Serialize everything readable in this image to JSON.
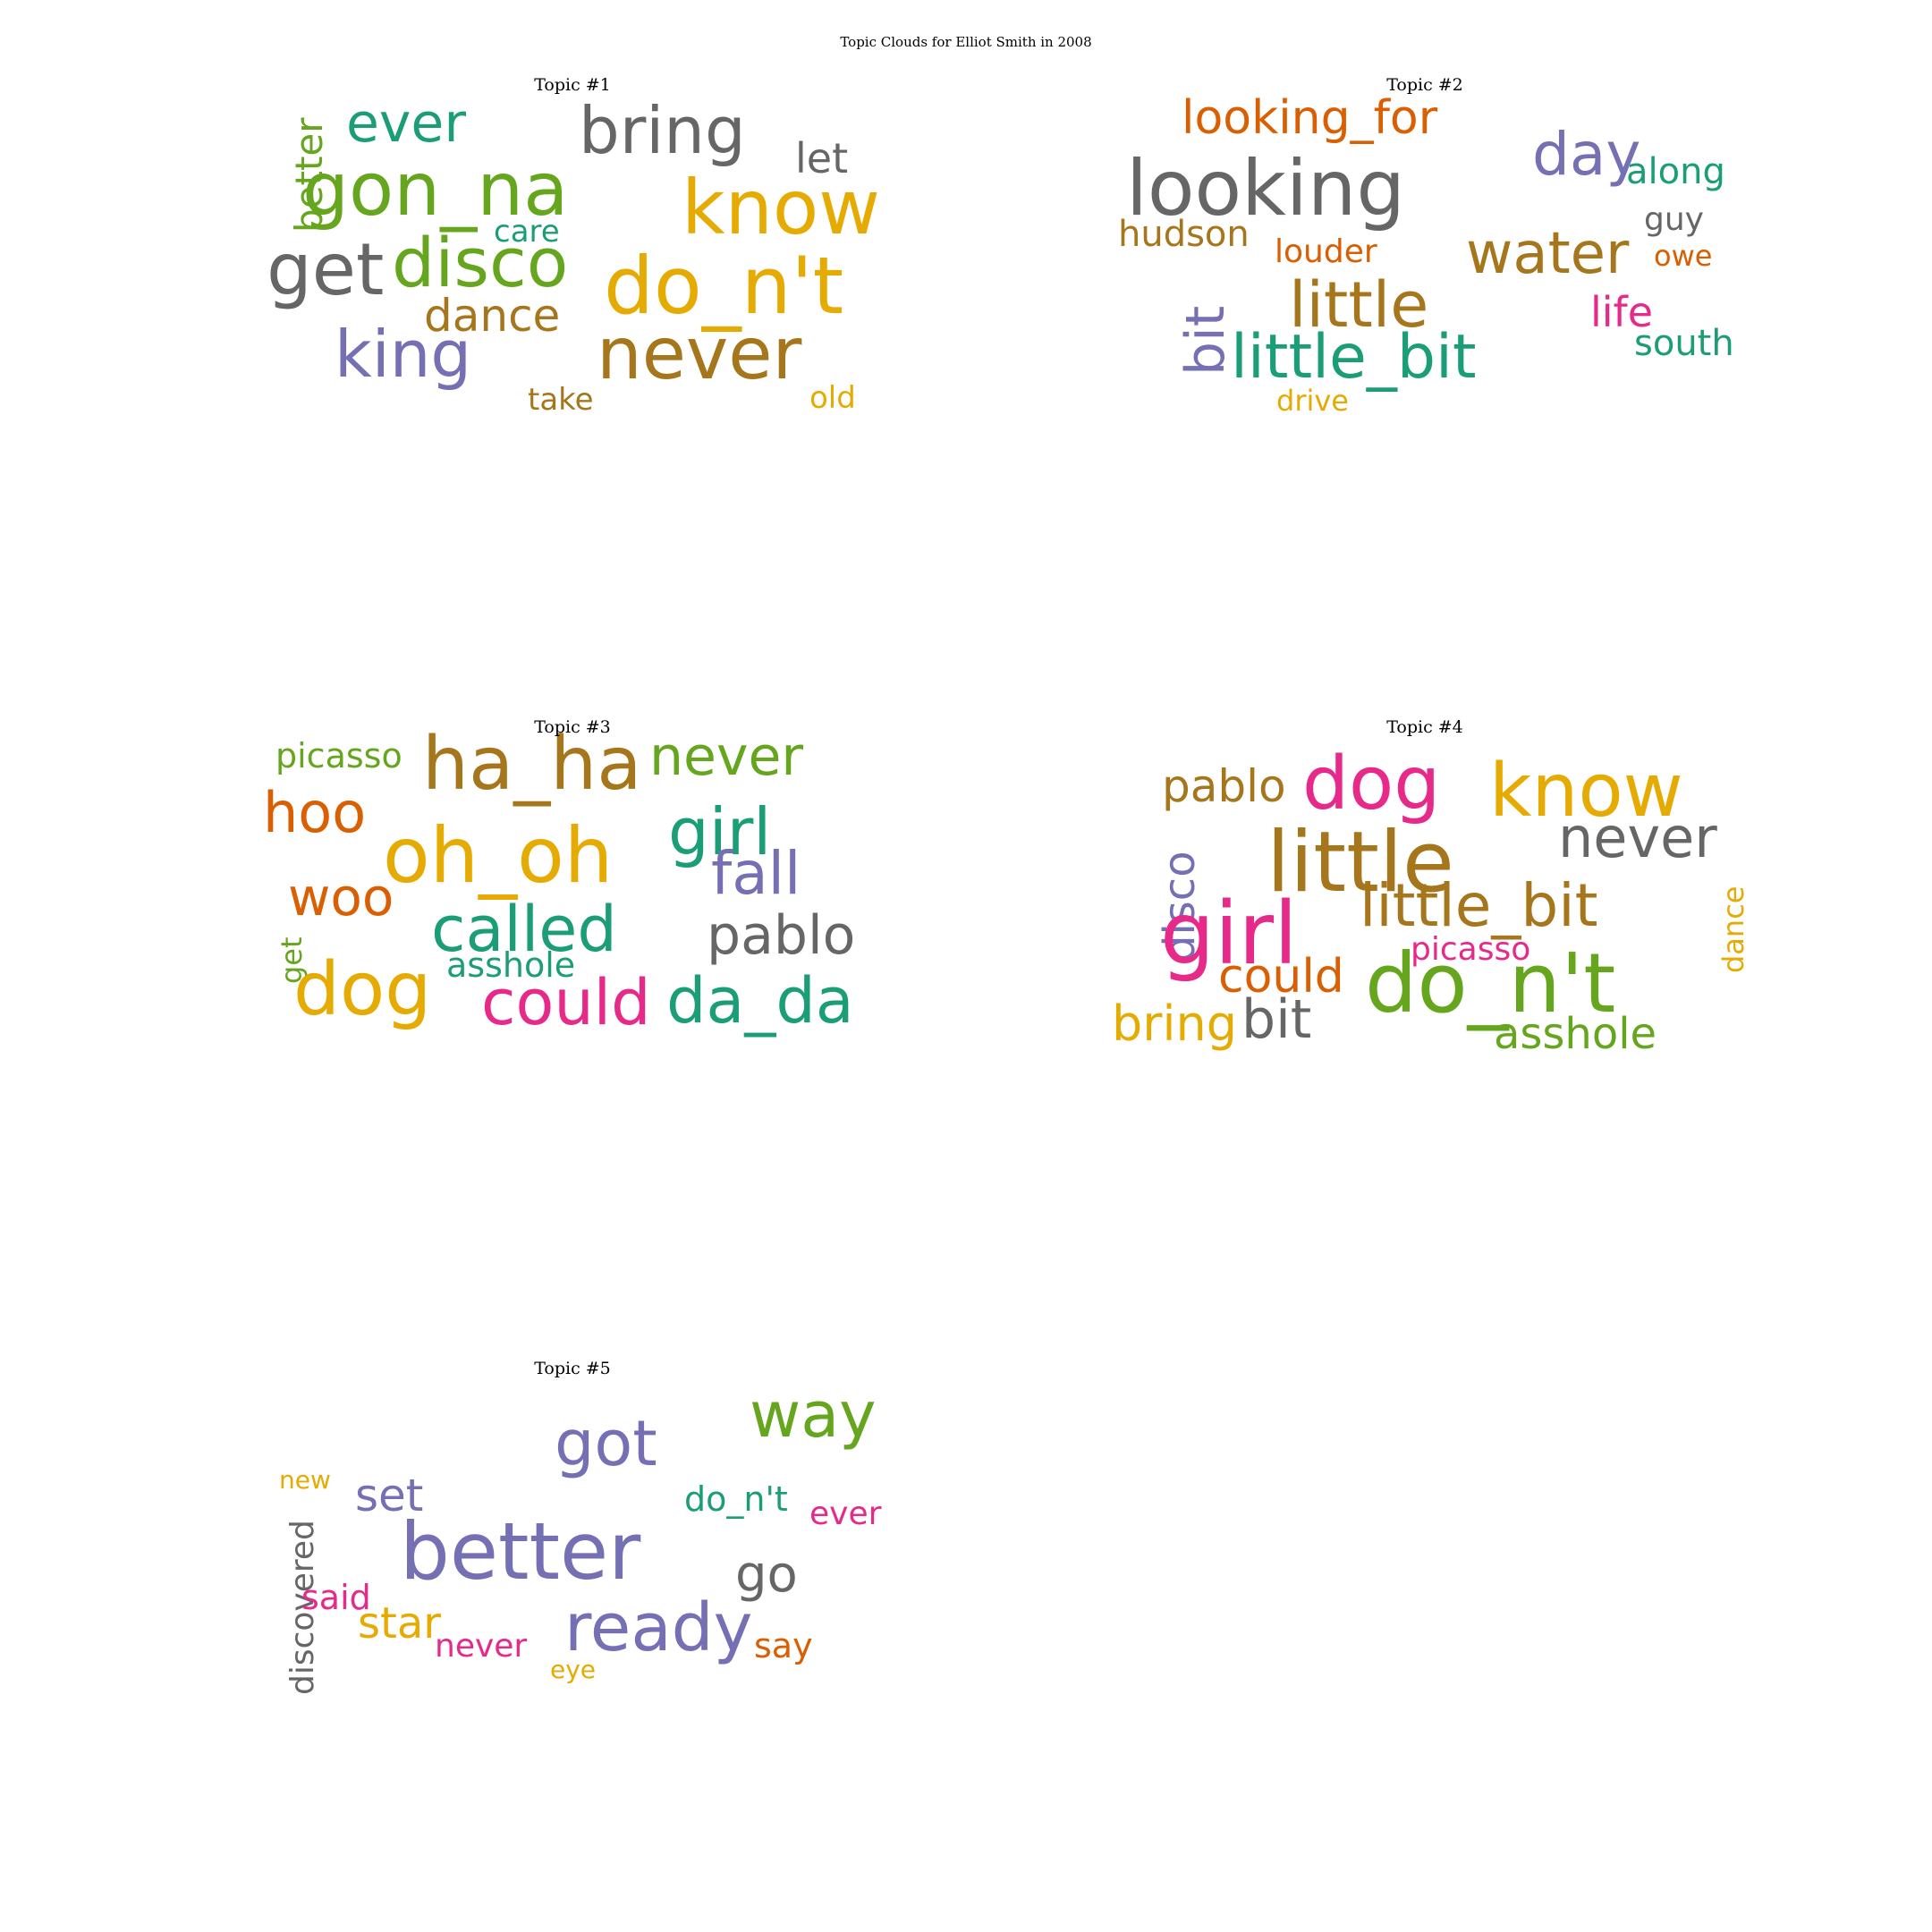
{
  "figure": {
    "title": "Topic Clouds for Elliot Smith in 2008"
  },
  "colors": {
    "teal": "#1b9e77",
    "orange": "#d95f02",
    "purple": "#7570b3",
    "pink": "#e7298a",
    "green": "#66a61e",
    "yellow": "#e6ab02",
    "brown": "#a6761d",
    "gray": "#666666"
  },
  "topics": [
    {
      "title": "Topic #1",
      "words": [
        {
          "text": "ever",
          "color": "teal",
          "vertical": false
        },
        {
          "text": "bring",
          "color": "gray",
          "vertical": false
        },
        {
          "text": "better",
          "color": "green",
          "vertical": true
        },
        {
          "text": "gon_na",
          "color": "green",
          "vertical": false
        },
        {
          "text": "let",
          "color": "gray",
          "vertical": false
        },
        {
          "text": "know",
          "color": "yellow",
          "vertical": false
        },
        {
          "text": "care",
          "color": "teal",
          "vertical": false
        },
        {
          "text": "get",
          "color": "gray",
          "vertical": false
        },
        {
          "text": "disco",
          "color": "green",
          "vertical": false
        },
        {
          "text": "do_n't",
          "color": "yellow",
          "vertical": false
        },
        {
          "text": "dance",
          "color": "brown",
          "vertical": false
        },
        {
          "text": "king",
          "color": "purple",
          "vertical": false
        },
        {
          "text": "never",
          "color": "brown",
          "vertical": false
        },
        {
          "text": "take",
          "color": "brown",
          "vertical": false
        },
        {
          "text": "old",
          "color": "yellow",
          "vertical": false
        }
      ]
    },
    {
      "title": "Topic #2",
      "words": [
        {
          "text": "looking_for",
          "color": "orange",
          "vertical": false
        },
        {
          "text": "day",
          "color": "purple",
          "vertical": false
        },
        {
          "text": "looking",
          "color": "gray",
          "vertical": false
        },
        {
          "text": "along",
          "color": "teal",
          "vertical": false
        },
        {
          "text": "guy",
          "color": "gray",
          "vertical": false
        },
        {
          "text": "hudson",
          "color": "brown",
          "vertical": false
        },
        {
          "text": "louder",
          "color": "orange",
          "vertical": false
        },
        {
          "text": "water",
          "color": "brown",
          "vertical": false
        },
        {
          "text": "owe",
          "color": "orange",
          "vertical": false
        },
        {
          "text": "bit",
          "color": "purple",
          "vertical": true
        },
        {
          "text": "little",
          "color": "brown",
          "vertical": false
        },
        {
          "text": "life",
          "color": "pink",
          "vertical": false
        },
        {
          "text": "south",
          "color": "teal",
          "vertical": false
        },
        {
          "text": "little_bit",
          "color": "teal",
          "vertical": false
        },
        {
          "text": "drive",
          "color": "yellow",
          "vertical": false
        }
      ]
    },
    {
      "title": "Topic #3",
      "words": [
        {
          "text": "picasso",
          "color": "green",
          "vertical": false
        },
        {
          "text": "ha_ha",
          "color": "brown",
          "vertical": false
        },
        {
          "text": "never",
          "color": "green",
          "vertical": false
        },
        {
          "text": "hoo",
          "color": "orange",
          "vertical": false
        },
        {
          "text": "girl",
          "color": "teal",
          "vertical": false
        },
        {
          "text": "oh_oh",
          "color": "yellow",
          "vertical": false
        },
        {
          "text": "fall",
          "color": "purple",
          "vertical": false
        },
        {
          "text": "woo",
          "color": "orange",
          "vertical": false
        },
        {
          "text": "called",
          "color": "teal",
          "vertical": false
        },
        {
          "text": "pablo",
          "color": "gray",
          "vertical": false
        },
        {
          "text": "get",
          "color": "green",
          "vertical": true
        },
        {
          "text": "asshole",
          "color": "teal",
          "vertical": false
        },
        {
          "text": "dog",
          "color": "yellow",
          "vertical": false
        },
        {
          "text": "could",
          "color": "pink",
          "vertical": false
        },
        {
          "text": "da_da",
          "color": "teal",
          "vertical": false
        }
      ]
    },
    {
      "title": "Topic #4",
      "words": [
        {
          "text": "pablo",
          "color": "brown",
          "vertical": false
        },
        {
          "text": "dog",
          "color": "pink",
          "vertical": false
        },
        {
          "text": "know",
          "color": "yellow",
          "vertical": false
        },
        {
          "text": "disco",
          "color": "purple",
          "vertical": true
        },
        {
          "text": "little",
          "color": "brown",
          "vertical": false
        },
        {
          "text": "never",
          "color": "gray",
          "vertical": false
        },
        {
          "text": "girl",
          "color": "pink",
          "vertical": false
        },
        {
          "text": "little_bit",
          "color": "brown",
          "vertical": false
        },
        {
          "text": "dance",
          "color": "yellow",
          "vertical": true
        },
        {
          "text": "picasso",
          "color": "pink",
          "vertical": false
        },
        {
          "text": "could",
          "color": "orange",
          "vertical": false
        },
        {
          "text": "do_n't",
          "color": "green",
          "vertical": false
        },
        {
          "text": "bring",
          "color": "yellow",
          "vertical": false
        },
        {
          "text": "bit",
          "color": "gray",
          "vertical": false
        },
        {
          "text": "asshole",
          "color": "green",
          "vertical": false
        }
      ]
    },
    {
      "title": "Topic #5",
      "words": [
        {
          "text": "way",
          "color": "green",
          "vertical": false
        },
        {
          "text": "got",
          "color": "purple",
          "vertical": false
        },
        {
          "text": "new",
          "color": "yellow",
          "vertical": false
        },
        {
          "text": "set",
          "color": "purple",
          "vertical": false
        },
        {
          "text": "do_n't",
          "color": "teal",
          "vertical": false
        },
        {
          "text": "ever",
          "color": "pink",
          "vertical": false
        },
        {
          "text": "discovered",
          "color": "gray",
          "vertical": true
        },
        {
          "text": "better",
          "color": "purple",
          "vertical": false
        },
        {
          "text": "go",
          "color": "gray",
          "vertical": false
        },
        {
          "text": "said",
          "color": "pink",
          "vertical": false
        },
        {
          "text": "star",
          "color": "yellow",
          "vertical": false
        },
        {
          "text": "ready",
          "color": "purple",
          "vertical": false
        },
        {
          "text": "never",
          "color": "pink",
          "vertical": false
        },
        {
          "text": "say",
          "color": "orange",
          "vertical": false
        },
        {
          "text": "eye",
          "color": "yellow",
          "vertical": false
        }
      ]
    }
  ]
}
